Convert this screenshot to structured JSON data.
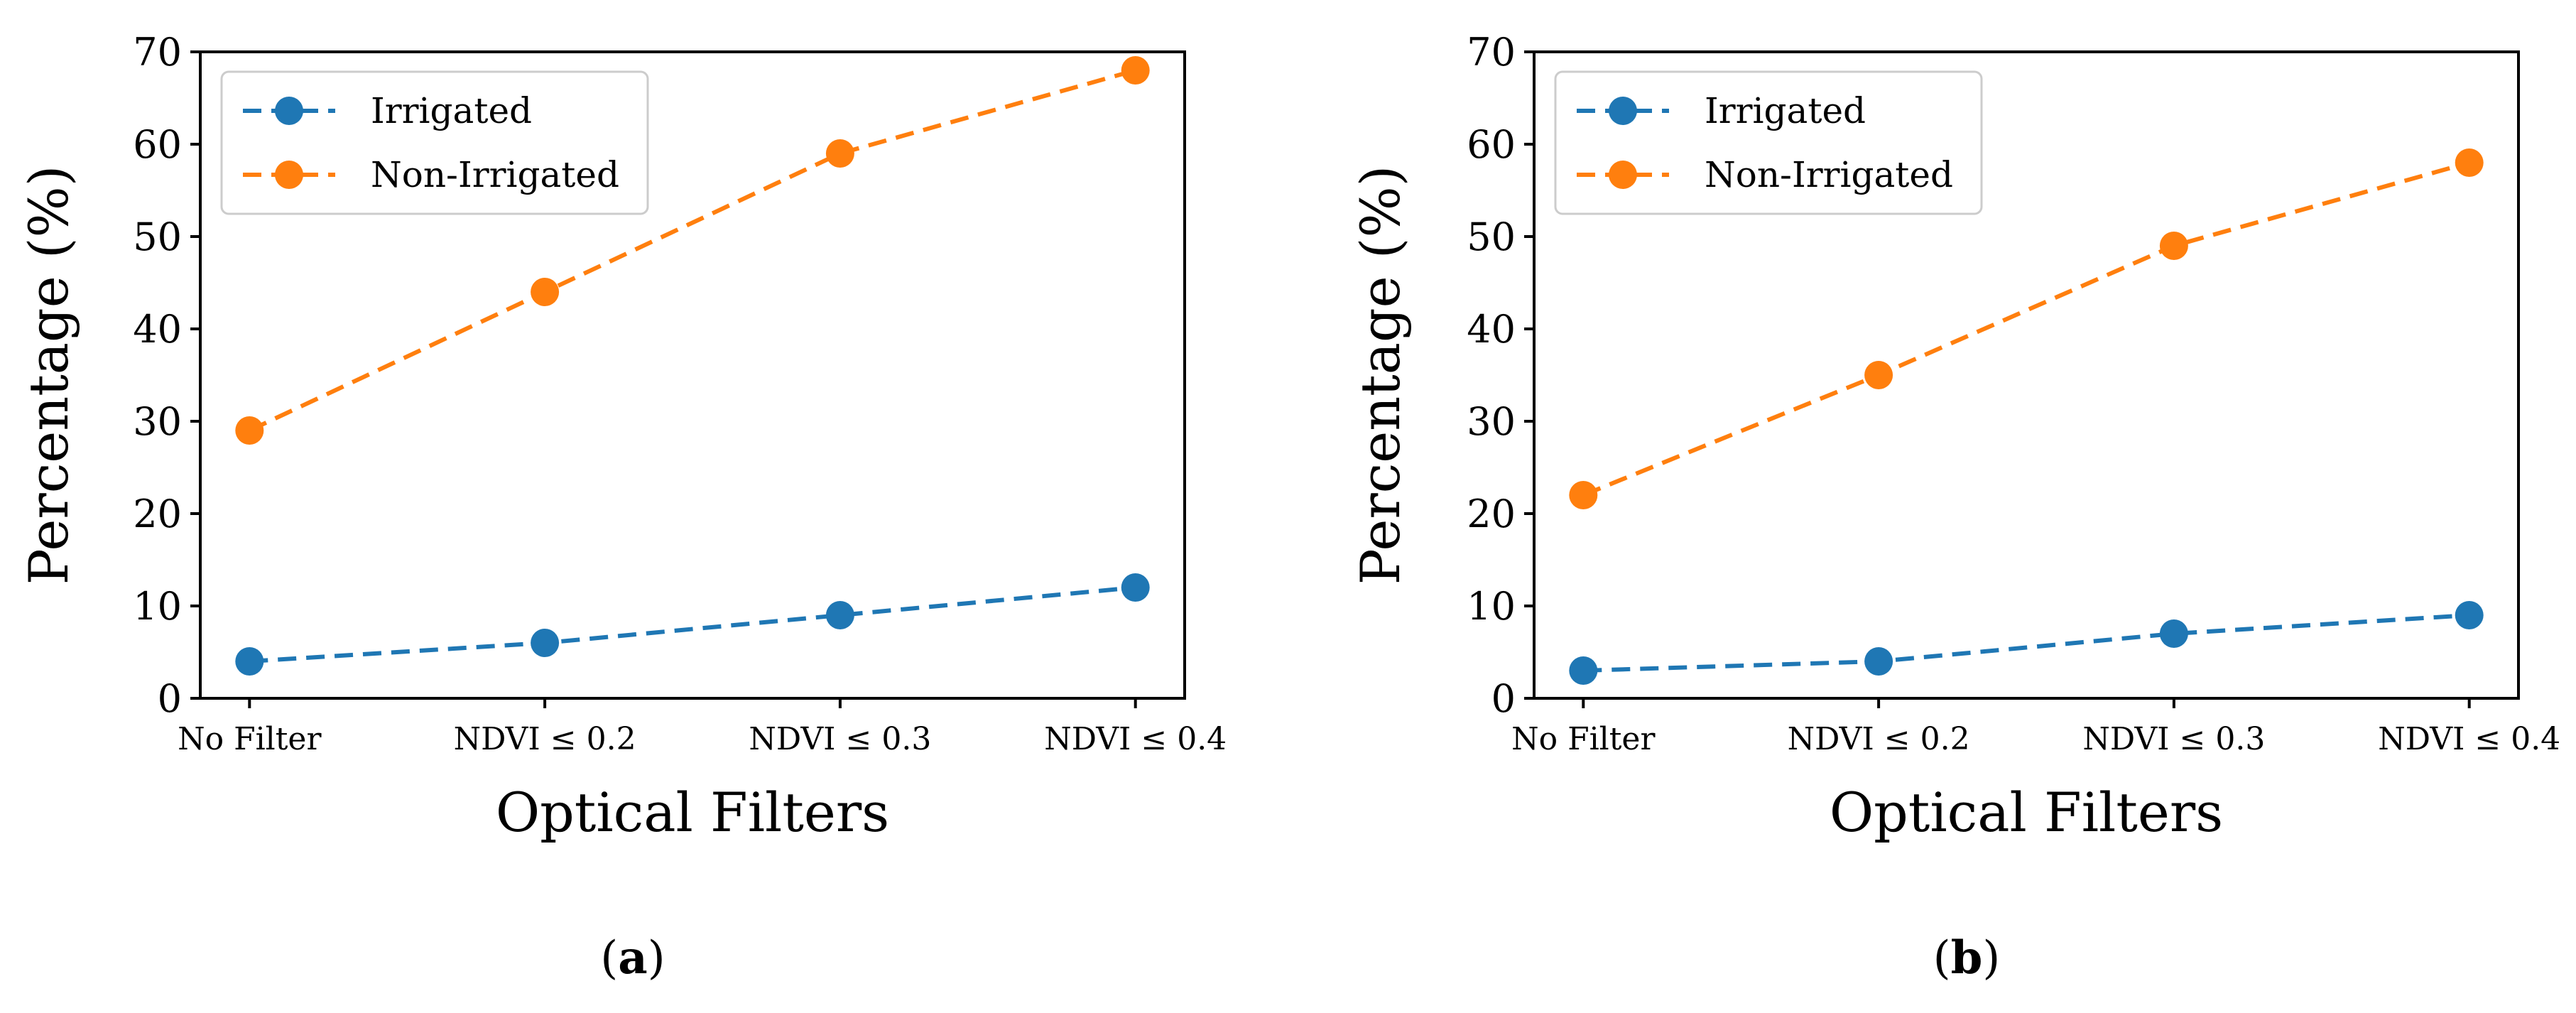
{
  "chart_data": [
    {
      "type": "line",
      "title": "",
      "caption_letter": "a",
      "xlabel": "Optical Filters",
      "ylabel": "Percentage (%)",
      "categories": [
        "No Filter",
        "NDVI ≤ 0.2",
        "NDVI ≤ 0.3",
        "NDVI ≤ 0.4"
      ],
      "ylim": [
        0,
        70
      ],
      "yticks": [
        0,
        10,
        20,
        30,
        40,
        50,
        60,
        70
      ],
      "legend_position": "top-left",
      "series": [
        {
          "name": "Irrigated",
          "color": "#1f77b4",
          "linestyle": "dashed",
          "marker": "circle",
          "values": [
            4,
            6,
            9,
            12
          ]
        },
        {
          "name": "Non-Irrigated",
          "color": "#ff7f0e",
          "linestyle": "dashed",
          "marker": "circle",
          "values": [
            29,
            44,
            59,
            68
          ]
        }
      ]
    },
    {
      "type": "line",
      "title": "",
      "caption_letter": "b",
      "xlabel": "Optical Filters",
      "ylabel": "Percentage (%)",
      "categories": [
        "No Filter",
        "NDVI ≤ 0.2",
        "NDVI ≤ 0.3",
        "NDVI ≤ 0.4"
      ],
      "ylim": [
        0,
        70
      ],
      "yticks": [
        0,
        10,
        20,
        30,
        40,
        50,
        60,
        70
      ],
      "legend_position": "top-left",
      "series": [
        {
          "name": "Irrigated",
          "color": "#1f77b4",
          "linestyle": "dashed",
          "marker": "circle",
          "values": [
            3,
            4,
            7,
            9
          ]
        },
        {
          "name": "Non-Irrigated",
          "color": "#ff7f0e",
          "linestyle": "dashed",
          "marker": "circle",
          "values": [
            22,
            35,
            49,
            58
          ]
        }
      ]
    }
  ]
}
